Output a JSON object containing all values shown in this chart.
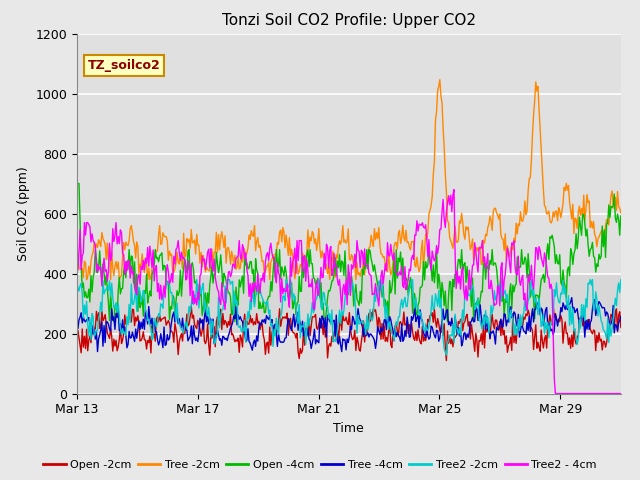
{
  "title": "Tonzi Soil CO2 Profile: Upper CO2",
  "ylabel": "Soil CO2 (ppm)",
  "xlabel": "Time",
  "legend_label": "TZ_soilco2",
  "ylim": [
    0,
    1200
  ],
  "series": [
    {
      "label": "Open -2cm",
      "color": "#cc0000"
    },
    {
      "label": "Tree -2cm",
      "color": "#ff8800"
    },
    {
      "label": "Open -4cm",
      "color": "#00bb00"
    },
    {
      "label": "Tree -4cm",
      "color": "#0000cc"
    },
    {
      "label": "Tree2 -2cm",
      "color": "#00cccc"
    },
    {
      "label": "Tree2 - 4cm",
      "color": "#ff00ff"
    }
  ],
  "xtick_labels": [
    "Mar 13",
    "Mar 17",
    "Mar 21",
    "Mar 25",
    "Mar 29"
  ],
  "xtick_positions": [
    0,
    4,
    8,
    12,
    16
  ],
  "fig_bg_color": "#e8e8e8",
  "plot_bg_color": "#e0e0e0",
  "grid_color": "#ffffff",
  "title_fontsize": 11,
  "tick_fontsize": 9,
  "legend_box_color": "#ffffc0",
  "legend_box_edge": "#cc8800",
  "figsize": [
    6.4,
    4.8
  ],
  "dpi": 100
}
